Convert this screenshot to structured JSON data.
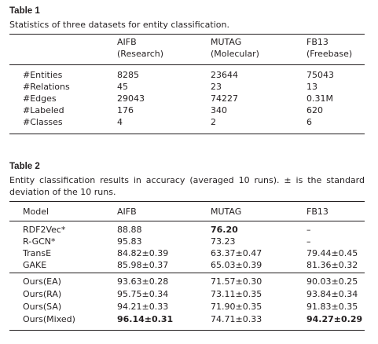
{
  "table1": {
    "label": "Table 1",
    "caption": "Statistics of three datasets for entity classification.",
    "headers": [
      {
        "name": "AIFB",
        "sub": "(Research)"
      },
      {
        "name": "MUTAG",
        "sub": "(Molecular)"
      },
      {
        "name": "FB13",
        "sub": "(Freebase)"
      }
    ],
    "rows": [
      {
        "label": "#Entities",
        "values": [
          "8285",
          "23644",
          "75043"
        ]
      },
      {
        "label": "#Relations",
        "values": [
          "45",
          "23",
          "13"
        ]
      },
      {
        "label": "#Edges",
        "values": [
          "29043",
          "74227",
          "0.31M"
        ]
      },
      {
        "label": "#Labeled",
        "values": [
          "176",
          "340",
          "620"
        ]
      },
      {
        "label": "#Classes",
        "values": [
          "4",
          "2",
          "6"
        ]
      }
    ]
  },
  "table2": {
    "label": "Table 2",
    "caption_line1": "Entity classification results in accuracy (averaged 10 runs). ± is the standard",
    "caption_line2": "deviation of the 10 runs.",
    "headers": [
      "Model",
      "AIFB",
      "MUTAG",
      "FB13"
    ],
    "groups": [
      [
        {
          "model": "RDF2Vec*",
          "values": [
            "88.88",
            "76.20",
            "–"
          ],
          "bold": [
            false,
            true,
            false
          ]
        },
        {
          "model": "R-GCN*",
          "values": [
            "95.83",
            "73.23",
            "–"
          ],
          "bold": [
            false,
            false,
            false
          ]
        },
        {
          "model": "TransE",
          "values": [
            "84.82±0.39",
            "63.37±0.47",
            "79.44±0.45"
          ],
          "bold": [
            false,
            false,
            false
          ]
        },
        {
          "model": "GAKE",
          "values": [
            "85.98±0.37",
            "65.03±0.39",
            "81.36±0.32"
          ],
          "bold": [
            false,
            false,
            false
          ]
        }
      ],
      [
        {
          "model": "Ours(EA)",
          "values": [
            "93.63±0.28",
            "71.57±0.30",
            "90.03±0.25"
          ],
          "bold": [
            false,
            false,
            false
          ]
        },
        {
          "model": "Ours(RA)",
          "values": [
            "95.75±0.34",
            "73.11±0.35",
            "93.84±0.34"
          ],
          "bold": [
            false,
            false,
            false
          ]
        },
        {
          "model": "Ours(SA)",
          "values": [
            "94.21±0.33",
            "71.90±0.35",
            "91.83±0.35"
          ],
          "bold": [
            false,
            false,
            false
          ]
        },
        {
          "model": "Ours(Mixed)",
          "values": [
            "96.14±0.31",
            "74.71±0.33",
            "94.27±0.29"
          ],
          "bold": [
            true,
            false,
            true
          ]
        }
      ]
    ]
  }
}
